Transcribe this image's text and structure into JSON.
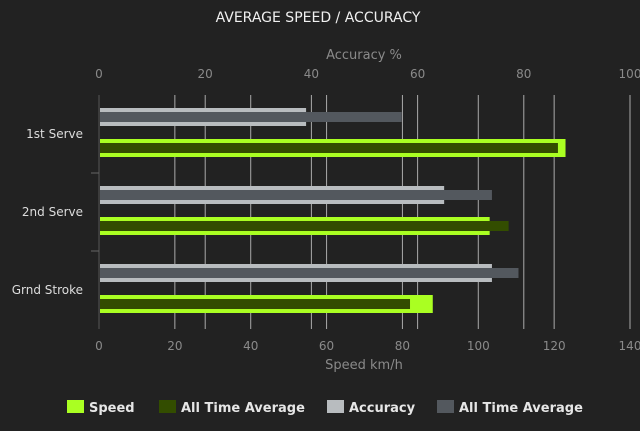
{
  "chart_data": {
    "type": "bar",
    "orientation": "horizontal",
    "title": "AVERAGE SPEED / ACCURACY",
    "categories": [
      "1st Serve",
      "2nd Serve",
      "Grnd Stroke"
    ],
    "x_bottom": {
      "label": "Speed km/h",
      "range": [
        0,
        140
      ],
      "ticks": [
        "0",
        "20",
        "40",
        "60",
        "80",
        "100",
        "120",
        "140"
      ]
    },
    "x_top": {
      "label": "Accuracy %",
      "range": [
        0,
        100
      ],
      "ticks": [
        "0",
        "20",
        "40",
        "60",
        "80",
        "100"
      ]
    },
    "grid": true,
    "legend_position": "bottom",
    "series": [
      {
        "name": "Speed",
        "axis": "speed",
        "color": "#aaff22",
        "values": [
          123,
          103,
          88
        ]
      },
      {
        "name": "All Time Average",
        "axis": "speed",
        "color": "#334d00",
        "values": [
          121,
          108,
          82
        ]
      },
      {
        "name": "Accuracy",
        "axis": "accuracy",
        "color": "#b8bcbf",
        "values": [
          39,
          65,
          74
        ]
      },
      {
        "name": "All Time Average",
        "axis": "accuracy",
        "color": "#53585e",
        "values": [
          57,
          74,
          79
        ]
      }
    ]
  }
}
